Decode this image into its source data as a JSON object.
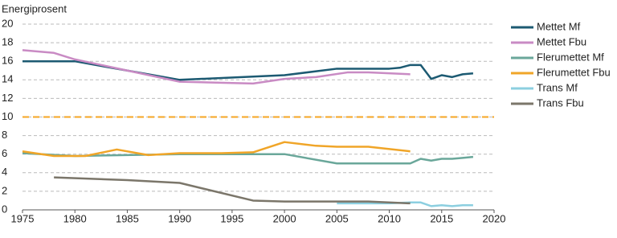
{
  "chart_data": {
    "type": "line",
    "y_label": "Energiprosent",
    "xlim": [
      1975,
      2020
    ],
    "xticks": [
      1975,
      1980,
      1985,
      1990,
      1995,
      2000,
      2005,
      2010,
      2015,
      2020
    ],
    "ylim": [
      0,
      20
    ],
    "yticks": [
      0,
      2,
      4,
      6,
      8,
      10,
      12,
      14,
      16,
      18,
      20
    ],
    "grid": true,
    "legend": "right",
    "reference_lines": [
      {
        "value": 10,
        "color": "#f5a623",
        "dashed": true
      }
    ],
    "series": [
      {
        "name": "Mettet Mf",
        "color": "#1c5a72",
        "x": [
          1975,
          1980,
          1990,
          2000,
          2005,
          2010,
          2011,
          2012,
          2013,
          2014,
          2015,
          2016,
          2017,
          2018
        ],
        "values": [
          16,
          16,
          14,
          14.5,
          15.2,
          15.2,
          15.3,
          15.6,
          15.6,
          14.1,
          14.5,
          14.3,
          14.6,
          14.7
        ]
      },
      {
        "name": "Mettet Fbu",
        "color": "#c98bc4",
        "x": [
          1975,
          1978,
          1980,
          1990,
          1997,
          2000,
          2003,
          2006,
          2008,
          2012
        ],
        "values": [
          17.2,
          16.9,
          16.2,
          13.8,
          13.6,
          14.1,
          14.3,
          14.8,
          14.8,
          14.6
        ]
      },
      {
        "name": "Flerumettet Mf",
        "color": "#6aa79a",
        "x": [
          1975,
          1980,
          1990,
          2000,
          2005,
          2010,
          2012,
          2013,
          2014,
          2015,
          2016,
          2017,
          2018
        ],
        "values": [
          6.1,
          5.8,
          6.0,
          6.0,
          5.0,
          5.0,
          5.0,
          5.5,
          5.3,
          5.5,
          5.5,
          5.6,
          5.7
        ]
      },
      {
        "name": "Flerumettet Fbu",
        "color": "#f0a528",
        "x": [
          1975,
          1978,
          1981,
          1984,
          1987,
          1990,
          1994,
          1997,
          2000,
          2003,
          2005,
          2008,
          2012
        ],
        "values": [
          6.3,
          5.8,
          5.8,
          6.5,
          5.9,
          6.1,
          6.1,
          6.2,
          7.3,
          6.9,
          6.8,
          6.8,
          6.3
        ]
      },
      {
        "name": "Trans Mf",
        "color": "#8ccfe0",
        "x": [
          2005,
          2008,
          2010,
          2012,
          2013,
          2014,
          2015,
          2016,
          2017,
          2018
        ],
        "values": [
          0.7,
          0.7,
          0.7,
          0.8,
          0.8,
          0.4,
          0.5,
          0.4,
          0.5,
          0.5
        ]
      },
      {
        "name": "Trans Fbu",
        "color": "#7b766a",
        "x": [
          1978,
          1985,
          1990,
          1997,
          2000,
          2005,
          2008,
          2012
        ],
        "values": [
          3.5,
          3.2,
          2.9,
          1.0,
          0.9,
          0.9,
          0.9,
          0.7
        ]
      }
    ]
  }
}
